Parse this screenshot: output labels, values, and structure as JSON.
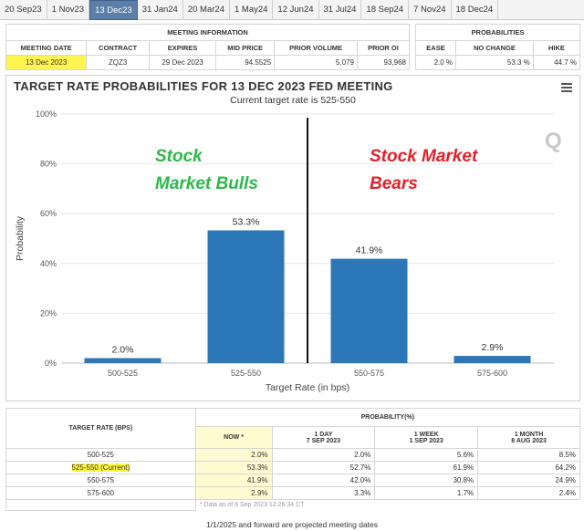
{
  "tabs": [
    "20 Sep23",
    "1 Nov23",
    "13 Dec23",
    "31 Jan24",
    "20 Mar24",
    "1 May24",
    "12 Jun24",
    "31 Jul24",
    "18 Sep24",
    "7 Nov24",
    "18 Dec24"
  ],
  "active_tab": "13 Dec23",
  "meeting_info": {
    "section_title": "MEETING INFORMATION",
    "headers": [
      "MEETING DATE",
      "CONTRACT",
      "EXPIRES",
      "MID PRICE",
      "PRIOR VOLUME",
      "PRIOR OI"
    ],
    "row": [
      "13 Dec 2023",
      "ZQZ3",
      "29 Dec 2023",
      "94.5525",
      "5,079",
      "93,968"
    ]
  },
  "probabilities": {
    "section_title": "PROBABILITIES",
    "headers": [
      "EASE",
      "NO CHANGE",
      "HIKE"
    ],
    "row": [
      "2.0 %",
      "53.3 %",
      "44.7 %"
    ]
  },
  "chart_header": {
    "title": "TARGET RATE PROBABILITIES FOR 13 DEC 2023 FED MEETING",
    "subtitle": "Current target rate is 525-550"
  },
  "overlays": {
    "bulls_line1": "Stock",
    "bulls_line2": "Market Bulls",
    "bears_line1": "Stock Market",
    "bears_line2": "Bears",
    "logo": "Q"
  },
  "chart_data": {
    "type": "bar",
    "categories": [
      "500-525",
      "525-550",
      "550-575",
      "575-600"
    ],
    "values": [
      2.0,
      53.3,
      41.9,
      2.9
    ],
    "data_labels": [
      "2.0%",
      "53.3%",
      "41.9%",
      "2.9%"
    ],
    "xlabel": "Target Rate (in bps)",
    "ylabel": "Probability",
    "ylim": [
      0,
      100
    ],
    "yticks": [
      "0%",
      "20%",
      "40%",
      "60%",
      "80%",
      "100%"
    ],
    "color": "#2b77b8",
    "divider_between": [
      "525-550",
      "550-575"
    ]
  },
  "prob_table": {
    "col_target": "TARGET RATE (BPS)",
    "col_group": "PROBABILITY(%)",
    "sub_headers": [
      {
        "line1": "NOW *",
        "line2": ""
      },
      {
        "line1": "1 DAY",
        "line2": "7 SEP 2023"
      },
      {
        "line1": "1 WEEK",
        "line2": "1 SEP 2023"
      },
      {
        "line1": "1 MONTH",
        "line2": "8 AUG 2023"
      }
    ],
    "rows": [
      {
        "rate": "500-525",
        "now": "2.0%",
        "day": "2.0%",
        "week": "5.6%",
        "month": "8.5%"
      },
      {
        "rate": "525-550 (Current)",
        "now": "53.3%",
        "day": "52.7%",
        "week": "61.9%",
        "month": "64.2%"
      },
      {
        "rate": "550-575",
        "now": "41.9%",
        "day": "42.0%",
        "week": "30.8%",
        "month": "24.9%"
      },
      {
        "rate": "575-600",
        "now": "2.9%",
        "day": "3.3%",
        "week": "1.7%",
        "month": "2.4%"
      }
    ],
    "note": "* Data as of 8 Sep 2023 12:26:34 CT"
  },
  "footer": "1/1/2025 and forward are projected meeting dates"
}
